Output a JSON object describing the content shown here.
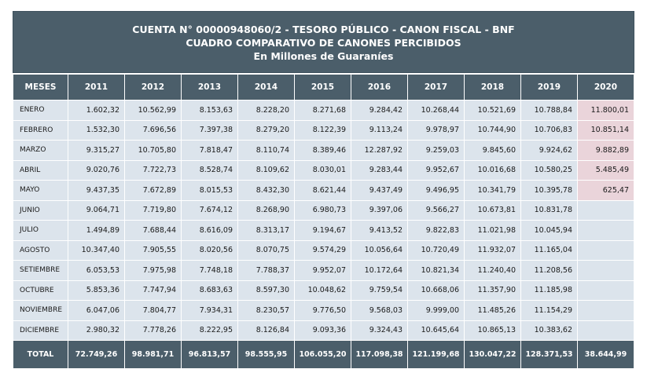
{
  "header": {
    "line1": "CUENTA N° 00000948060/2 - TESORO PÚBLICO - CANON FISCAL - BNF",
    "line2": "CUADRO COMPARATIVO DE CANONES PERCIBIDOS",
    "line3": "En Millones de Guaraníes"
  },
  "table": {
    "columns": [
      "MESES",
      "2011",
      "2012",
      "2013",
      "2014",
      "2015",
      "2016",
      "2017",
      "2018",
      "2019",
      "2020"
    ],
    "rows": [
      [
        "ENERO",
        "1.602,32",
        "10.562,99",
        "8.153,63",
        "8.228,20",
        "8.271,68",
        "9.284,42",
        "10.268,44",
        "10.521,69",
        "10.788,84",
        "11.800,01"
      ],
      [
        "FEBRERO",
        "1.532,30",
        "7.696,56",
        "7.397,38",
        "8.279,20",
        "8.122,39",
        "9.113,24",
        "9.978,97",
        "10.744,90",
        "10.706,83",
        "10.851,14"
      ],
      [
        "MARZO",
        "9.315,27",
        "10.705,80",
        "7.818,47",
        "8.110,74",
        "8.389,46",
        "12.287,92",
        "9.259,03",
        "9.845,60",
        "9.924,62",
        "9.882,89"
      ],
      [
        "ABRIL",
        "9.020,76",
        "7.722,73",
        "8.528,74",
        "8.109,62",
        "8.030,01",
        "9.283,44",
        "9.952,67",
        "10.016,68",
        "10.580,25",
        "5.485,49"
      ],
      [
        "MAYO",
        "9.437,35",
        "7.672,89",
        "8.015,53",
        "8.432,30",
        "8.621,44",
        "9.437,49",
        "9.496,95",
        "10.341,79",
        "10.395,78",
        "625,47"
      ],
      [
        "JUNIO",
        "9.064,71",
        "7.719,80",
        "7.674,12",
        "8.268,90",
        "6.980,73",
        "9.397,06",
        "9.566,27",
        "10.673,81",
        "10.831,78",
        ""
      ],
      [
        "JULIO",
        "1.494,89",
        "7.688,44",
        "8.616,09",
        "8.313,17",
        "9.194,67",
        "9.413,52",
        "9.822,83",
        "11.021,98",
        "10.045,94",
        ""
      ],
      [
        "AGOSTO",
        "10.347,40",
        "7.905,55",
        "8.020,56",
        "8.070,75",
        "9.574,29",
        "10.056,64",
        "10.720,49",
        "11.932,07",
        "11.165,04",
        ""
      ],
      [
        "SETIEMBRE",
        "6.053,53",
        "7.975,98",
        "7.748,18",
        "7.788,37",
        "9.952,07",
        "10.172,64",
        "10.821,34",
        "11.240,40",
        "11.208,56",
        ""
      ],
      [
        "OCTUBRE",
        "5.853,36",
        "7.747,94",
        "8.683,63",
        "8.597,30",
        "10.048,62",
        "9.759,54",
        "10.668,06",
        "11.357,90",
        "11.185,98",
        ""
      ],
      [
        "NOVIEMBRE",
        "6.047,06",
        "7.804,77",
        "7.934,31",
        "8.230,57",
        "9.776,50",
        "9.568,03",
        "9.999,00",
        "11.485,26",
        "11.154,29",
        ""
      ],
      [
        "DICIEMBRE",
        "2.980,32",
        "7.778,26",
        "8.222,95",
        "8.126,84",
        "9.093,36",
        "9.324,43",
        "10.645,64",
        "10.865,13",
        "10.383,62",
        ""
      ]
    ],
    "total": [
      "TOTAL",
      "72.749,26",
      "98.981,71",
      "96.813,57",
      "98.555,95",
      "106.055,20",
      "117.098,38",
      "121.199,68",
      "130.047,22",
      "128.371,53",
      "38.644,99"
    ],
    "highlight_color": "#ead4da",
    "header_color": "#4b5e6a",
    "row_color": "#dce4ec"
  }
}
